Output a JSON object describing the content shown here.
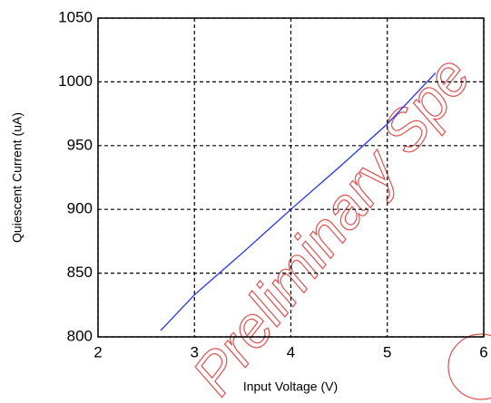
{
  "chart_data": {
    "type": "line",
    "x_label": "Input Voltage (V)",
    "y_label": "Quiescent Current (uA)",
    "annotation": "Preliminary Spe",
    "x": [
      2.65,
      3,
      3.5,
      4,
      4.5,
      5,
      5.5
    ],
    "series": [
      {
        "color": "#2233ee",
        "values": [
          805,
          833,
          866,
          900,
          933,
          967,
          1007
        ]
      }
    ],
    "xlim": [
      2,
      6
    ],
    "xticks": [
      2,
      3,
      4,
      5,
      6
    ],
    "ylim": [
      800,
      1050
    ],
    "yticks": [
      800,
      850,
      900,
      950,
      1000,
      1050
    ],
    "grid": true
  }
}
